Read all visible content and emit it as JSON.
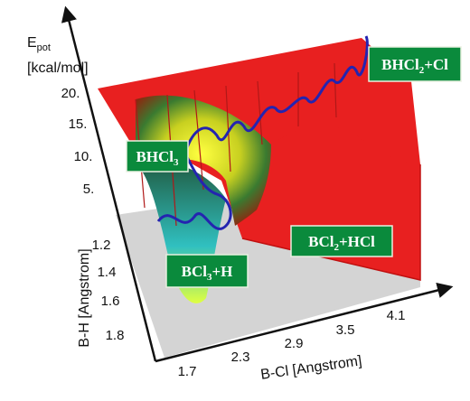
{
  "axes": {
    "energy": {
      "label_main": "E",
      "label_sub": "pot",
      "label_unit": "[kcal/mol]",
      "ticks": [
        "20.",
        "15.",
        "10.",
        "5."
      ]
    },
    "bh": {
      "label": "B-H [Angstrom]",
      "ticks": [
        "1.2",
        "1.4",
        "1.6",
        "1.8"
      ]
    },
    "bcl": {
      "label": "B-Cl [Angstrom]",
      "ticks": [
        "1.7",
        "2.3",
        "2.9",
        "3.5",
        "4.1"
      ]
    }
  },
  "annotations": [
    {
      "main": "BHCl",
      "sub": "2",
      "rest": "+Cl"
    },
    {
      "main": "BHCl",
      "sub": "3",
      "rest": ""
    },
    {
      "main": "BCl",
      "sub": "3",
      "rest": "+H"
    },
    {
      "main": "BCl",
      "sub": "2",
      "rest": "+HCl"
    }
  ]
}
